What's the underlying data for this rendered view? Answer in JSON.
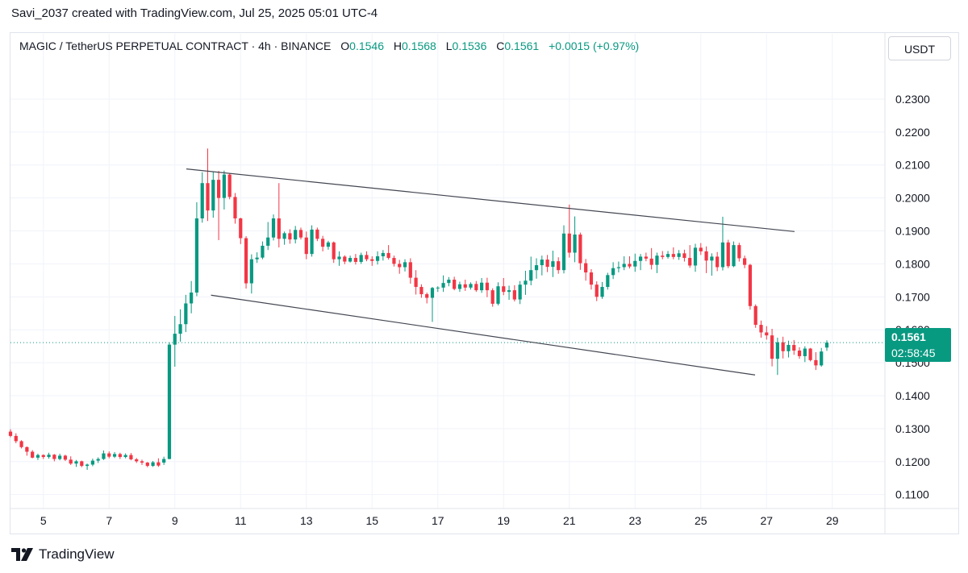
{
  "caption": "Savi_2037 created with TradingView.com, Jul 25, 2025 05:01 UTC-4",
  "legend": {
    "symbol": "MAGIC / TetherUS PERPETUAL CONTRACT · 4h · BINANCE",
    "o_label": "O",
    "o_value": "0.1546",
    "h_label": "H",
    "h_value": "0.1568",
    "l_label": "L",
    "l_value": "0.1536",
    "c_label": "C",
    "c_value": "0.1561",
    "change": "+0.0015 (+0.97%)"
  },
  "currency": "USDT",
  "last_price": "0.1561",
  "countdown": "02:58:45",
  "brand": "TradingView",
  "colors": {
    "up": "#089981",
    "down": "#f23645",
    "trendline": "#434651",
    "grid": "#f0f3fa"
  },
  "chart_data": {
    "type": "candlestick",
    "interval": "4h",
    "x_axis": {
      "ticks": [
        "5",
        "7",
        "9",
        "11",
        "13",
        "15",
        "17",
        "19",
        "21",
        "23",
        "25",
        "27",
        "29"
      ],
      "xlim": [
        4.0,
        30.6
      ]
    },
    "y_axis": {
      "ticks": [
        "0.1100",
        "0.1200",
        "0.1300",
        "0.1400",
        "0.1500",
        "0.1600",
        "0.1700",
        "0.1800",
        "0.1900",
        "0.2000",
        "0.2100",
        "0.2200",
        "0.2300"
      ],
      "ylim": [
        0.1065,
        0.2405
      ]
    },
    "last_price_line": 0.1561,
    "ohlc": [
      {
        "o": 0.1291,
        "h": 0.1298,
        "l": 0.1274,
        "c": 0.1278
      },
      {
        "o": 0.1278,
        "h": 0.1286,
        "l": 0.1256,
        "c": 0.1262
      },
      {
        "o": 0.1262,
        "h": 0.1265,
        "l": 0.124,
        "c": 0.1244
      },
      {
        "o": 0.1244,
        "h": 0.1246,
        "l": 0.1218,
        "c": 0.123
      },
      {
        "o": 0.123,
        "h": 0.1235,
        "l": 0.121,
        "c": 0.1212
      },
      {
        "o": 0.1212,
        "h": 0.1224,
        "l": 0.1205,
        "c": 0.122
      },
      {
        "o": 0.122,
        "h": 0.1222,
        "l": 0.1208,
        "c": 0.1214
      },
      {
        "o": 0.1214,
        "h": 0.1227,
        "l": 0.1209,
        "c": 0.1221
      },
      {
        "o": 0.1221,
        "h": 0.1223,
        "l": 0.1201,
        "c": 0.1208
      },
      {
        "o": 0.1208,
        "h": 0.1224,
        "l": 0.1204,
        "c": 0.1218
      },
      {
        "o": 0.1218,
        "h": 0.1221,
        "l": 0.1202,
        "c": 0.1206
      },
      {
        "o": 0.1206,
        "h": 0.1216,
        "l": 0.119,
        "c": 0.1194
      },
      {
        "o": 0.1194,
        "h": 0.1205,
        "l": 0.1184,
        "c": 0.1201
      },
      {
        "o": 0.1201,
        "h": 0.1203,
        "l": 0.1183,
        "c": 0.1187
      },
      {
        "o": 0.1187,
        "h": 0.1194,
        "l": 0.1175,
        "c": 0.1191
      },
      {
        "o": 0.1191,
        "h": 0.1209,
        "l": 0.1186,
        "c": 0.1203
      },
      {
        "o": 0.1203,
        "h": 0.1213,
        "l": 0.1196,
        "c": 0.1208
      },
      {
        "o": 0.1208,
        "h": 0.1234,
        "l": 0.1205,
        "c": 0.1225
      },
      {
        "o": 0.1225,
        "h": 0.1231,
        "l": 0.121,
        "c": 0.1215
      },
      {
        "o": 0.1215,
        "h": 0.1229,
        "l": 0.1211,
        "c": 0.1223
      },
      {
        "o": 0.1223,
        "h": 0.1227,
        "l": 0.1208,
        "c": 0.1214
      },
      {
        "o": 0.1214,
        "h": 0.1225,
        "l": 0.121,
        "c": 0.122
      },
      {
        "o": 0.122,
        "h": 0.1226,
        "l": 0.1204,
        "c": 0.1207
      },
      {
        "o": 0.1207,
        "h": 0.1211,
        "l": 0.1196,
        "c": 0.1201
      },
      {
        "o": 0.1201,
        "h": 0.1206,
        "l": 0.119,
        "c": 0.1197
      },
      {
        "o": 0.1197,
        "h": 0.1199,
        "l": 0.1183,
        "c": 0.1187
      },
      {
        "o": 0.1187,
        "h": 0.1202,
        "l": 0.1184,
        "c": 0.1198
      },
      {
        "o": 0.1198,
        "h": 0.121,
        "l": 0.1184,
        "c": 0.1188
      },
      {
        "o": 0.1197,
        "h": 0.1215,
        "l": 0.119,
        "c": 0.1208
      },
      {
        "o": 0.1208,
        "h": 0.1562,
        "l": 0.1207,
        "c": 0.1555
      },
      {
        "o": 0.1555,
        "h": 0.1642,
        "l": 0.1488,
        "c": 0.1588
      },
      {
        "o": 0.1588,
        "h": 0.1662,
        "l": 0.1564,
        "c": 0.1617
      },
      {
        "o": 0.1617,
        "h": 0.1706,
        "l": 0.1593,
        "c": 0.168
      },
      {
        "o": 0.168,
        "h": 0.1748,
        "l": 0.165,
        "c": 0.1713
      },
      {
        "o": 0.1713,
        "h": 0.1987,
        "l": 0.1702,
        "c": 0.1938
      },
      {
        "o": 0.1938,
        "h": 0.2078,
        "l": 0.1925,
        "c": 0.2045
      },
      {
        "o": 0.2045,
        "h": 0.215,
        "l": 0.193,
        "c": 0.1962
      },
      {
        "o": 0.1962,
        "h": 0.208,
        "l": 0.194,
        "c": 0.2055
      },
      {
        "o": 0.2055,
        "h": 0.2082,
        "l": 0.1872,
        "c": 0.2
      },
      {
        "o": 0.2,
        "h": 0.2083,
        "l": 0.1965,
        "c": 0.2071
      },
      {
        "o": 0.2071,
        "h": 0.2075,
        "l": 0.1996,
        "c": 0.2003
      },
      {
        "o": 0.2003,
        "h": 0.2015,
        "l": 0.1922,
        "c": 0.1938
      },
      {
        "o": 0.1938,
        "h": 0.194,
        "l": 0.186,
        "c": 0.1878
      },
      {
        "o": 0.1878,
        "h": 0.1884,
        "l": 0.1725,
        "c": 0.1741
      },
      {
        "o": 0.1741,
        "h": 0.1829,
        "l": 0.171,
        "c": 0.1814
      },
      {
        "o": 0.1814,
        "h": 0.1835,
        "l": 0.1803,
        "c": 0.1819
      },
      {
        "o": 0.1819,
        "h": 0.1868,
        "l": 0.1814,
        "c": 0.1855
      },
      {
        "o": 0.1855,
        "h": 0.1927,
        "l": 0.1842,
        "c": 0.188
      },
      {
        "o": 0.188,
        "h": 0.195,
        "l": 0.1871,
        "c": 0.1938
      },
      {
        "o": 0.1938,
        "h": 0.2045,
        "l": 0.185,
        "c": 0.1876
      },
      {
        "o": 0.1876,
        "h": 0.1898,
        "l": 0.1858,
        "c": 0.1893
      },
      {
        "o": 0.1893,
        "h": 0.1905,
        "l": 0.1861,
        "c": 0.1874
      },
      {
        "o": 0.1874,
        "h": 0.1915,
        "l": 0.1862,
        "c": 0.1903
      },
      {
        "o": 0.1903,
        "h": 0.191,
        "l": 0.1874,
        "c": 0.188
      },
      {
        "o": 0.188,
        "h": 0.1898,
        "l": 0.1814,
        "c": 0.183
      },
      {
        "o": 0.183,
        "h": 0.1917,
        "l": 0.1822,
        "c": 0.1904
      },
      {
        "o": 0.1904,
        "h": 0.191,
        "l": 0.1869,
        "c": 0.1876
      },
      {
        "o": 0.1876,
        "h": 0.1885,
        "l": 0.1838,
        "c": 0.1852
      },
      {
        "o": 0.1852,
        "h": 0.187,
        "l": 0.1843,
        "c": 0.1865
      },
      {
        "o": 0.1865,
        "h": 0.1868,
        "l": 0.1803,
        "c": 0.1814
      },
      {
        "o": 0.1814,
        "h": 0.1838,
        "l": 0.1794,
        "c": 0.1822
      },
      {
        "o": 0.1822,
        "h": 0.1826,
        "l": 0.1799,
        "c": 0.1807
      },
      {
        "o": 0.1807,
        "h": 0.1825,
        "l": 0.1804,
        "c": 0.1818
      },
      {
        "o": 0.1818,
        "h": 0.183,
        "l": 0.1798,
        "c": 0.1806
      },
      {
        "o": 0.1806,
        "h": 0.1834,
        "l": 0.18,
        "c": 0.1827
      },
      {
        "o": 0.1827,
        "h": 0.1838,
        "l": 0.1808,
        "c": 0.1814
      },
      {
        "o": 0.1814,
        "h": 0.1823,
        "l": 0.1794,
        "c": 0.1809
      },
      {
        "o": 0.1809,
        "h": 0.1838,
        "l": 0.1798,
        "c": 0.1823
      },
      {
        "o": 0.1823,
        "h": 0.1842,
        "l": 0.181,
        "c": 0.1833
      },
      {
        "o": 0.1833,
        "h": 0.1857,
        "l": 0.1813,
        "c": 0.1818
      },
      {
        "o": 0.1818,
        "h": 0.1825,
        "l": 0.1792,
        "c": 0.18
      },
      {
        "o": 0.18,
        "h": 0.1812,
        "l": 0.177,
        "c": 0.179
      },
      {
        "o": 0.179,
        "h": 0.1814,
        "l": 0.1777,
        "c": 0.1805
      },
      {
        "o": 0.1805,
        "h": 0.1817,
        "l": 0.174,
        "c": 0.1758
      },
      {
        "o": 0.1758,
        "h": 0.1781,
        "l": 0.1707,
        "c": 0.173
      },
      {
        "o": 0.173,
        "h": 0.1738,
        "l": 0.1697,
        "c": 0.1708
      },
      {
        "o": 0.1708,
        "h": 0.1713,
        "l": 0.168,
        "c": 0.1697
      },
      {
        "o": 0.1697,
        "h": 0.173,
        "l": 0.1624,
        "c": 0.1727
      },
      {
        "o": 0.1727,
        "h": 0.1732,
        "l": 0.1715,
        "c": 0.1728
      },
      {
        "o": 0.1728,
        "h": 0.1765,
        "l": 0.1715,
        "c": 0.1742
      },
      {
        "o": 0.1742,
        "h": 0.176,
        "l": 0.1732,
        "c": 0.1752
      },
      {
        "o": 0.1752,
        "h": 0.1761,
        "l": 0.172,
        "c": 0.1724
      },
      {
        "o": 0.1724,
        "h": 0.1746,
        "l": 0.1715,
        "c": 0.1738
      },
      {
        "o": 0.1738,
        "h": 0.1752,
        "l": 0.1718,
        "c": 0.1728
      },
      {
        "o": 0.1728,
        "h": 0.1744,
        "l": 0.1722,
        "c": 0.1739
      },
      {
        "o": 0.1739,
        "h": 0.1748,
        "l": 0.1715,
        "c": 0.172
      },
      {
        "o": 0.172,
        "h": 0.1757,
        "l": 0.1712,
        "c": 0.1743
      },
      {
        "o": 0.1743,
        "h": 0.1758,
        "l": 0.1699,
        "c": 0.172
      },
      {
        "o": 0.172,
        "h": 0.1726,
        "l": 0.167,
        "c": 0.1679
      },
      {
        "o": 0.1679,
        "h": 0.1744,
        "l": 0.1674,
        "c": 0.1732
      },
      {
        "o": 0.1732,
        "h": 0.1757,
        "l": 0.1705,
        "c": 0.1715
      },
      {
        "o": 0.1715,
        "h": 0.1734,
        "l": 0.1691,
        "c": 0.172
      },
      {
        "o": 0.172,
        "h": 0.1735,
        "l": 0.1686,
        "c": 0.1692
      },
      {
        "o": 0.1692,
        "h": 0.1748,
        "l": 0.1678,
        "c": 0.1737
      },
      {
        "o": 0.1737,
        "h": 0.1779,
        "l": 0.1706,
        "c": 0.1749
      },
      {
        "o": 0.1749,
        "h": 0.1822,
        "l": 0.1735,
        "c": 0.1781
      },
      {
        "o": 0.1781,
        "h": 0.1817,
        "l": 0.1755,
        "c": 0.1796
      },
      {
        "o": 0.1796,
        "h": 0.1825,
        "l": 0.1765,
        "c": 0.1813
      },
      {
        "o": 0.1813,
        "h": 0.1827,
        "l": 0.1775,
        "c": 0.1791
      },
      {
        "o": 0.1791,
        "h": 0.184,
        "l": 0.176,
        "c": 0.1808
      },
      {
        "o": 0.1808,
        "h": 0.182,
        "l": 0.177,
        "c": 0.1781
      },
      {
        "o": 0.1781,
        "h": 0.1917,
        "l": 0.1771,
        "c": 0.1892
      },
      {
        "o": 0.1892,
        "h": 0.198,
        "l": 0.1819,
        "c": 0.1834
      },
      {
        "o": 0.1834,
        "h": 0.1944,
        "l": 0.1805,
        "c": 0.1889
      },
      {
        "o": 0.1889,
        "h": 0.1895,
        "l": 0.1782,
        "c": 0.1802
      },
      {
        "o": 0.1802,
        "h": 0.1815,
        "l": 0.1749,
        "c": 0.1774
      },
      {
        "o": 0.1774,
        "h": 0.1784,
        "l": 0.1722,
        "c": 0.1737
      },
      {
        "o": 0.1737,
        "h": 0.1747,
        "l": 0.1687,
        "c": 0.17
      },
      {
        "o": 0.17,
        "h": 0.1745,
        "l": 0.1694,
        "c": 0.173
      },
      {
        "o": 0.173,
        "h": 0.1773,
        "l": 0.1722,
        "c": 0.1766
      },
      {
        "o": 0.1766,
        "h": 0.1805,
        "l": 0.1754,
        "c": 0.1787
      },
      {
        "o": 0.1787,
        "h": 0.1807,
        "l": 0.1774,
        "c": 0.179
      },
      {
        "o": 0.179,
        "h": 0.1823,
        "l": 0.1781,
        "c": 0.18
      },
      {
        "o": 0.18,
        "h": 0.1823,
        "l": 0.1786,
        "c": 0.1792
      },
      {
        "o": 0.1792,
        "h": 0.1831,
        "l": 0.1776,
        "c": 0.1809
      },
      {
        "o": 0.1809,
        "h": 0.183,
        "l": 0.1781,
        "c": 0.1822
      },
      {
        "o": 0.1822,
        "h": 0.1834,
        "l": 0.1808,
        "c": 0.1816
      },
      {
        "o": 0.1816,
        "h": 0.1848,
        "l": 0.1783,
        "c": 0.1797
      },
      {
        "o": 0.1797,
        "h": 0.1834,
        "l": 0.1772,
        "c": 0.1825
      },
      {
        "o": 0.1825,
        "h": 0.1839,
        "l": 0.1814,
        "c": 0.1821
      },
      {
        "o": 0.1821,
        "h": 0.1839,
        "l": 0.1816,
        "c": 0.183
      },
      {
        "o": 0.183,
        "h": 0.185,
        "l": 0.1814,
        "c": 0.1821
      },
      {
        "o": 0.1821,
        "h": 0.1842,
        "l": 0.1812,
        "c": 0.1832
      },
      {
        "o": 0.1832,
        "h": 0.1843,
        "l": 0.1807,
        "c": 0.1818
      },
      {
        "o": 0.1818,
        "h": 0.1857,
        "l": 0.1788,
        "c": 0.1795
      },
      {
        "o": 0.1795,
        "h": 0.1861,
        "l": 0.1776,
        "c": 0.1849
      },
      {
        "o": 0.1849,
        "h": 0.1863,
        "l": 0.1827,
        "c": 0.1838
      },
      {
        "o": 0.1838,
        "h": 0.1853,
        "l": 0.1772,
        "c": 0.181
      },
      {
        "o": 0.181,
        "h": 0.1832,
        "l": 0.1764,
        "c": 0.1822
      },
      {
        "o": 0.1822,
        "h": 0.1836,
        "l": 0.1778,
        "c": 0.179
      },
      {
        "o": 0.179,
        "h": 0.1943,
        "l": 0.178,
        "c": 0.1865
      },
      {
        "o": 0.1865,
        "h": 0.1873,
        "l": 0.1787,
        "c": 0.1793
      },
      {
        "o": 0.1793,
        "h": 0.1868,
        "l": 0.179,
        "c": 0.1857
      },
      {
        "o": 0.1857,
        "h": 0.1864,
        "l": 0.1807,
        "c": 0.1817
      },
      {
        "o": 0.1817,
        "h": 0.1825,
        "l": 0.1787,
        "c": 0.1797
      },
      {
        "o": 0.1797,
        "h": 0.18,
        "l": 0.1661,
        "c": 0.1672
      },
      {
        "o": 0.1672,
        "h": 0.1677,
        "l": 0.1606,
        "c": 0.1615
      },
      {
        "o": 0.1615,
        "h": 0.1628,
        "l": 0.1576,
        "c": 0.1592
      },
      {
        "o": 0.1592,
        "h": 0.1611,
        "l": 0.157,
        "c": 0.1583
      },
      {
        "o": 0.1583,
        "h": 0.1603,
        "l": 0.1489,
        "c": 0.1512
      },
      {
        "o": 0.1512,
        "h": 0.1576,
        "l": 0.1463,
        "c": 0.1562
      },
      {
        "o": 0.1562,
        "h": 0.1579,
        "l": 0.1513,
        "c": 0.1535
      },
      {
        "o": 0.1535,
        "h": 0.1567,
        "l": 0.1516,
        "c": 0.1554
      },
      {
        "o": 0.1554,
        "h": 0.1569,
        "l": 0.1524,
        "c": 0.1537
      },
      {
        "o": 0.1537,
        "h": 0.1547,
        "l": 0.1512,
        "c": 0.152
      },
      {
        "o": 0.152,
        "h": 0.155,
        "l": 0.1502,
        "c": 0.1543
      },
      {
        "o": 0.1543,
        "h": 0.1545,
        "l": 0.1504,
        "c": 0.1508
      },
      {
        "o": 0.1508,
        "h": 0.1532,
        "l": 0.1478,
        "c": 0.1492
      },
      {
        "o": 0.1492,
        "h": 0.1545,
        "l": 0.1488,
        "c": 0.1534
      },
      {
        "o": 0.1546,
        "h": 0.1568,
        "l": 0.1536,
        "c": 0.1561
      }
    ],
    "trendlines": [
      {
        "x1": 9.35,
        "y1": 0.2088,
        "x2": 27.85,
        "y2": 0.1898
      },
      {
        "x1": 10.1,
        "y1": 0.1705,
        "x2": 26.65,
        "y2": 0.1463
      }
    ]
  }
}
